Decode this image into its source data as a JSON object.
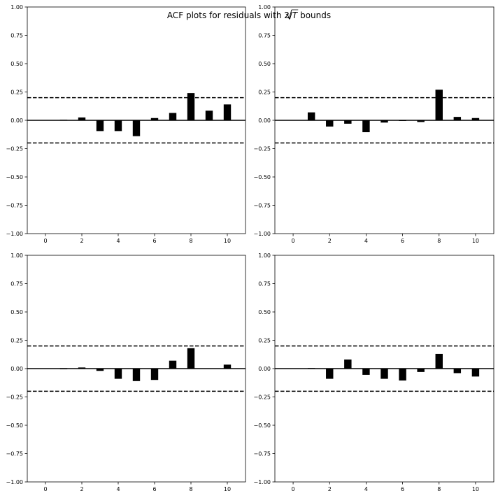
{
  "figure": {
    "title_prefix": "ACF plots for residuals with 2/",
    "title_radicand": "T",
    "title_suffix": " bounds"
  },
  "chart_data": [
    {
      "type": "bar",
      "title": "",
      "xlabel": "",
      "ylabel": "",
      "x": [
        1,
        2,
        3,
        4,
        5,
        6,
        7,
        8,
        9,
        10
      ],
      "values": [
        0.005,
        0.025,
        -0.095,
        -0.095,
        -0.14,
        0.02,
        0.065,
        0.24,
        0.085,
        0.14
      ],
      "bounds": [
        0.2,
        -0.2
      ],
      "xlim": [
        -1,
        11
      ],
      "ylim": [
        -1,
        1
      ],
      "xticks": [
        "0",
        "2",
        "4",
        "6",
        "8",
        "10"
      ],
      "yticks": [
        "-1.00",
        "-0.75",
        "-0.50",
        "-0.25",
        "0.00",
        "0.25",
        "0.50",
        "0.75",
        "1.00"
      ],
      "grid": false
    },
    {
      "type": "bar",
      "title": "",
      "xlabel": "",
      "ylabel": "",
      "x": [
        1,
        2,
        3,
        4,
        5,
        6,
        7,
        8,
        9,
        10
      ],
      "values": [
        0.07,
        -0.055,
        -0.03,
        -0.105,
        -0.02,
        -0.005,
        -0.015,
        0.27,
        0.03,
        0.02
      ],
      "bounds": [
        0.2,
        -0.2
      ],
      "xlim": [
        -1,
        11
      ],
      "ylim": [
        -1,
        1
      ],
      "xticks": [
        "0",
        "2",
        "4",
        "6",
        "8",
        "10"
      ],
      "yticks": [
        "-1.00",
        "-0.75",
        "-0.50",
        "-0.25",
        "0.00",
        "0.25",
        "0.50",
        "0.75",
        "1.00"
      ],
      "grid": false
    },
    {
      "type": "bar",
      "title": "",
      "xlabel": "",
      "ylabel": "",
      "x": [
        1,
        2,
        3,
        4,
        5,
        6,
        7,
        8,
        9,
        10
      ],
      "values": [
        -0.005,
        0.01,
        -0.02,
        -0.09,
        -0.11,
        -0.1,
        0.07,
        0.18,
        0.0,
        0.035
      ],
      "bounds": [
        0.2,
        -0.2
      ],
      "xlim": [
        -1,
        11
      ],
      "ylim": [
        -1,
        1
      ],
      "xticks": [
        "0",
        "2",
        "4",
        "6",
        "8",
        "10"
      ],
      "yticks": [
        "-1.00",
        "-0.75",
        "-0.50",
        "-0.25",
        "0.00",
        "0.25",
        "0.50",
        "0.75",
        "1.00"
      ],
      "grid": false
    },
    {
      "type": "bar",
      "title": "",
      "xlabel": "",
      "ylabel": "",
      "x": [
        1,
        2,
        3,
        4,
        5,
        6,
        7,
        8,
        9,
        10
      ],
      "values": [
        0.005,
        -0.09,
        0.08,
        -0.055,
        -0.09,
        -0.105,
        -0.03,
        0.13,
        -0.04,
        -0.07
      ],
      "bounds": [
        0.2,
        -0.2
      ],
      "xlim": [
        -1,
        11
      ],
      "ylim": [
        -1,
        1
      ],
      "xticks": [
        "0",
        "2",
        "4",
        "6",
        "8",
        "10"
      ],
      "yticks": [
        "-1.00",
        "-0.75",
        "-0.50",
        "-0.25",
        "0.00",
        "0.25",
        "0.50",
        "0.75",
        "1.00"
      ],
      "grid": false
    }
  ],
  "colors": {
    "bar": "#000000",
    "axes": "#000000",
    "background": "#ffffff"
  }
}
